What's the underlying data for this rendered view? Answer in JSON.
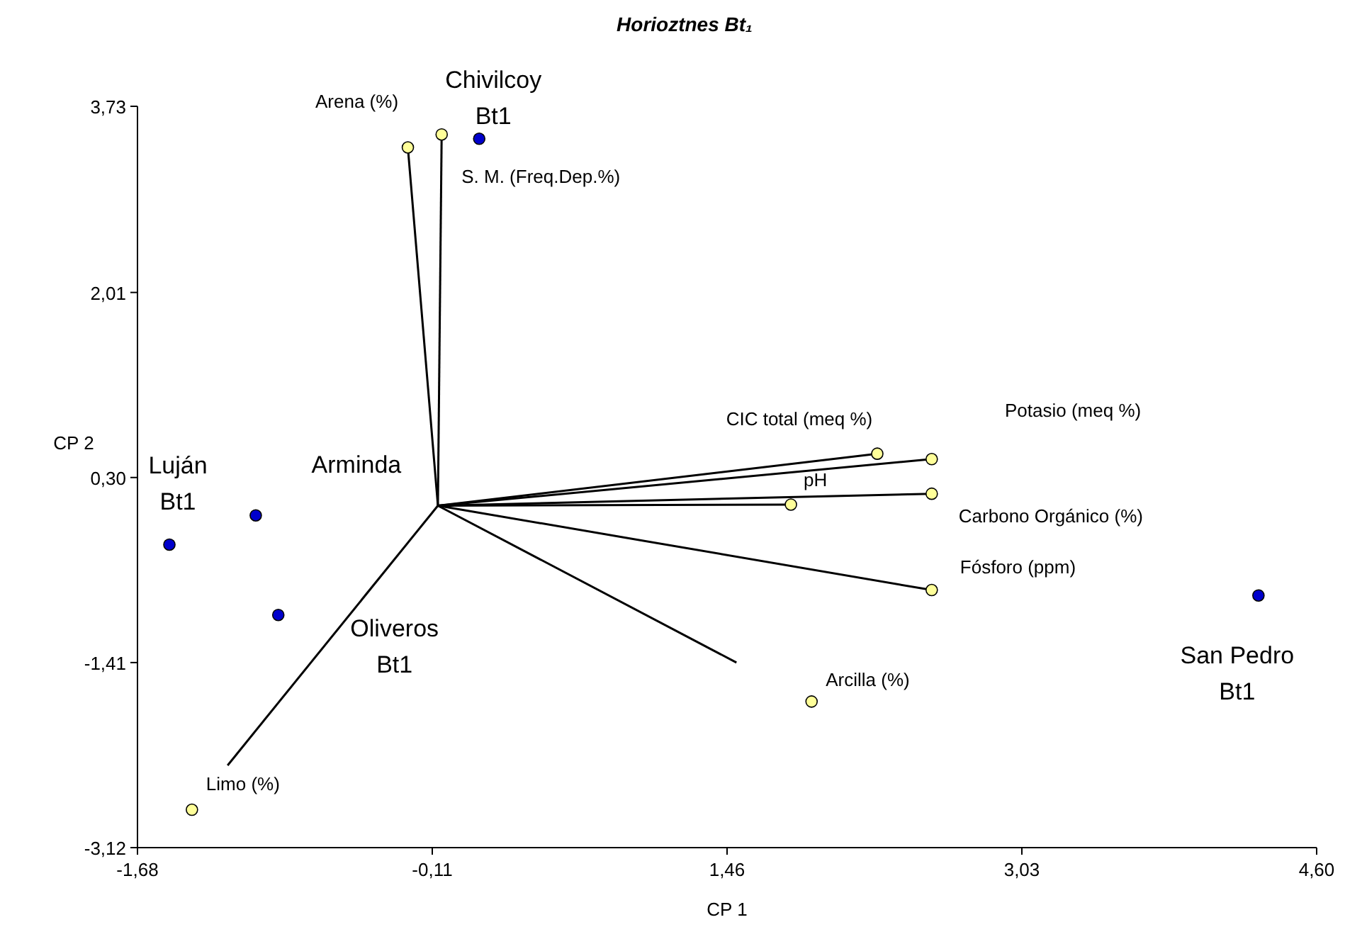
{
  "chart_data": {
    "type": "scatter",
    "title": "Horioztnes Bt₁",
    "xlabel": "CP 1",
    "ylabel": "CP 2",
    "xlim": [
      -1.68,
      4.6
    ],
    "ylim": [
      -3.12,
      3.73
    ],
    "xticks": [
      {
        "value": -1.68,
        "label": "-1,68"
      },
      {
        "value": -0.11,
        "label": "-0,11"
      },
      {
        "value": 1.46,
        "label": "1,46"
      },
      {
        "value": 3.03,
        "label": "3,03"
      },
      {
        "value": 4.6,
        "label": "4,60"
      }
    ],
    "yticks": [
      {
        "value": -3.12,
        "label": "-3,12"
      },
      {
        "value": -1.41,
        "label": "-1,41"
      },
      {
        "value": 0.3,
        "label": "0,30"
      },
      {
        "value": 2.01,
        "label": "2,01"
      },
      {
        "value": 3.73,
        "label": "3,73"
      }
    ],
    "grid": false,
    "marker": "circle",
    "series": [
      {
        "type": "line",
        "marker": "none",
        "color": "#000000",
        "x": [
          -0.08,
          -0.24
        ],
        "values": [
          0.04,
          3.35
        ]
      },
      {
        "type": "line",
        "marker": "none",
        "color": "#000000",
        "x": [
          -0.08,
          -0.06
        ],
        "values": [
          0.04,
          3.47
        ]
      },
      {
        "type": "line",
        "marker": "none",
        "color": "#000000",
        "x": [
          -0.08,
          2.26
        ],
        "values": [
          0.04,
          0.52
        ]
      },
      {
        "type": "line",
        "marker": "none",
        "color": "#000000",
        "x": [
          -0.08,
          2.55
        ],
        "values": [
          0.04,
          0.47
        ]
      },
      {
        "type": "line",
        "marker": "none",
        "color": "#000000",
        "x": [
          -0.08,
          1.8
        ],
        "values": [
          0.04,
          0.05
        ]
      },
      {
        "type": "line",
        "marker": "none",
        "color": "#000000",
        "x": [
          -0.08,
          2.55
        ],
        "values": [
          0.04,
          0.15
        ]
      },
      {
        "type": "line",
        "marker": "none",
        "color": "#000000",
        "x": [
          -0.08,
          2.55
        ],
        "values": [
          0.04,
          -0.74
        ]
      },
      {
        "type": "line",
        "marker": "none",
        "color": "#000000",
        "x": [
          -0.08,
          1.51
        ],
        "values": [
          0.04,
          -1.41
        ]
      },
      {
        "type": "line",
        "marker": "none",
        "color": "#000000",
        "x": [
          -0.08,
          -1.2
        ],
        "values": [
          0.04,
          -2.36
        ]
      },
      {
        "color": "#ffff99",
        "x": [
          -0.24,
          -0.06,
          2.26,
          2.55,
          1.8,
          2.55,
          2.55,
          1.91,
          -1.39
        ],
        "values": [
          3.35,
          3.47,
          0.52,
          0.47,
          0.05,
          0.15,
          -0.74,
          -1.77,
          -2.77
        ]
      },
      {
        "color": "#0000cc",
        "x": [
          0.14,
          -1.51,
          -1.05,
          -0.93,
          4.29
        ],
        "values": [
          3.43,
          -0.32,
          -0.05,
          -0.97,
          -0.79
        ]
      }
    ],
    "annotations": [
      {
        "text": "Arena (%)",
        "x": -0.24,
        "y": 3.35
      },
      {
        "text": "S. M. (Freq.Dep.%)",
        "x": -0.06,
        "y": 3.47
      },
      {
        "text": "Chivilcoy\nBt1",
        "x": 0.14,
        "y": 3.43
      },
      {
        "text": "CIC total (meq %)",
        "x": 2.26,
        "y": 0.52
      },
      "Potasio  (meq %)",
      {
        "text": "pH",
        "x": 1.8,
        "y": 0.05
      },
      {
        "text": "Carbono Orgánico (%)",
        "x": 2.55,
        "y": 0.15
      },
      {
        "text": "Fósforo (ppm)",
        "x": 2.55,
        "y": -0.74
      },
      {
        "text": "Arcilla (%)",
        "x": 1.91,
        "y": -1.77
      },
      {
        "text": "Limo (%)",
        "x": -1.39,
        "y": -2.77
      },
      {
        "text": "Luján\nBt1",
        "x": -1.51,
        "y": -0.32
      },
      {
        "text": "Arminda",
        "x": -1.05,
        "y": -0.05
      },
      {
        "text": "Oliveros\nBt1",
        "x": -0.93,
        "y": -0.97
      },
      {
        "text": "San Pedro\nBt1",
        "x": 4.29,
        "y": -0.79
      }
    ]
  }
}
